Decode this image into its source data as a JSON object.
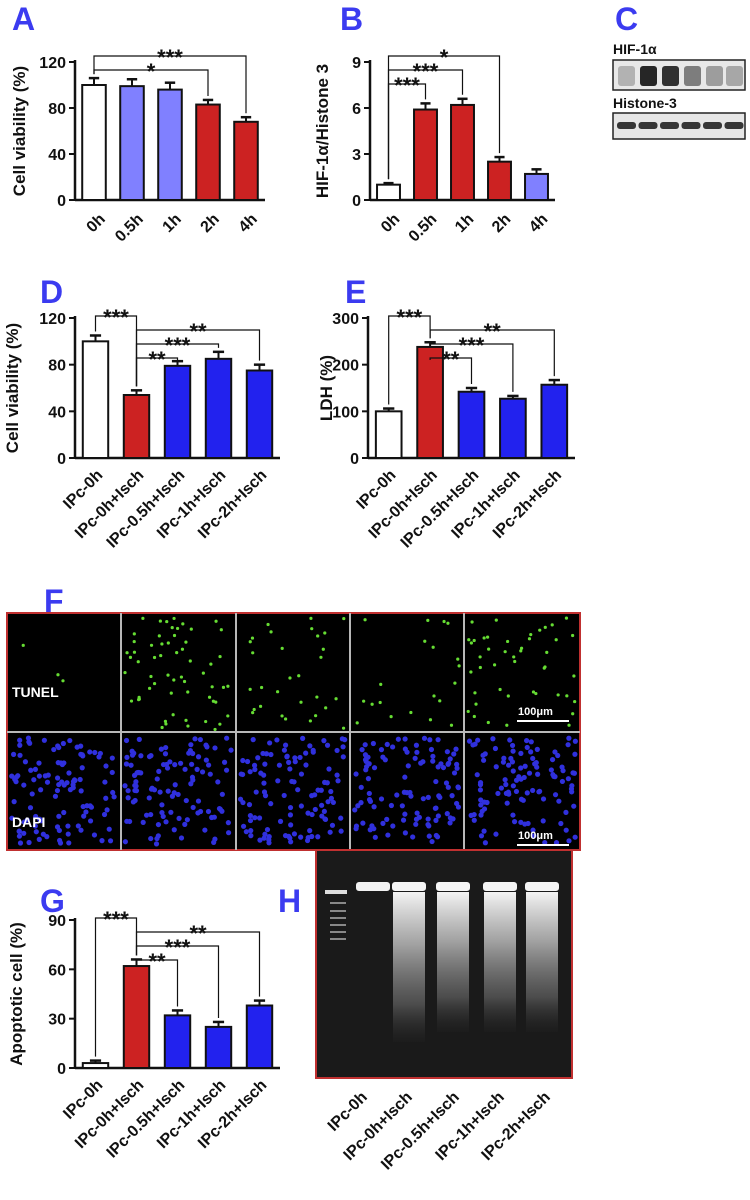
{
  "colors": {
    "letter": "#3b3bf0",
    "white_bar": "#ffffff",
    "light_blue": "#8080ff",
    "red": "#cc2222",
    "blue": "#2222ee",
    "frame_red": "#c03030",
    "tunel_green": "#66dd33",
    "dapi_blue": "#3030dd"
  },
  "chart_data": [
    {
      "panel": "A",
      "type": "bar",
      "ylabel": "Cell viability (%)",
      "categories": [
        "0h",
        "0.5h",
        "1h",
        "2h",
        "4h"
      ],
      "values": [
        100,
        99,
        96,
        83,
        68
      ],
      "errors": [
        6,
        6,
        6,
        4,
        4
      ],
      "bar_colors": [
        "white_bar",
        "light_blue",
        "light_blue",
        "red",
        "red"
      ],
      "ylim": [
        0,
        120
      ],
      "yticks": [
        "0",
        "40",
        "80",
        "120"
      ],
      "significance": [
        {
          "from": 0,
          "to": 4,
          "label": "***"
        },
        {
          "from": 0,
          "to": 3,
          "label": "*"
        }
      ]
    },
    {
      "panel": "B",
      "type": "bar",
      "ylabel": "HIF-1α/Histone 3",
      "categories": [
        "0h",
        "0.5h",
        "1h",
        "2h",
        "4h"
      ],
      "values": [
        1.0,
        5.9,
        6.2,
        2.5,
        1.7
      ],
      "errors": [
        0.1,
        0.4,
        0.4,
        0.3,
        0.3
      ],
      "bar_colors": [
        "white_bar",
        "red",
        "red",
        "red",
        "light_blue"
      ],
      "ylim": [
        0,
        9
      ],
      "yticks": [
        "0",
        "3",
        "6",
        "9"
      ],
      "significance": [
        {
          "from": 0,
          "to": 3,
          "label": "*"
        },
        {
          "from": 0,
          "to": 2,
          "label": "***"
        },
        {
          "from": 0,
          "to": 1,
          "label": "***"
        }
      ]
    },
    {
      "panel": "D",
      "type": "bar",
      "ylabel": "Cell viability (%)",
      "categories": [
        "IPc-0h",
        "IPc-0h+Isch",
        "IPc-0.5h+Isch",
        "IPc-1h+Isch",
        "IPc-2h+Isch"
      ],
      "values": [
        100,
        54,
        79,
        85,
        75
      ],
      "errors": [
        5,
        4,
        4,
        6,
        5
      ],
      "bar_colors": [
        "white_bar",
        "red",
        "blue",
        "blue",
        "blue"
      ],
      "ylim": [
        0,
        120
      ],
      "yticks": [
        "0",
        "40",
        "80",
        "120"
      ],
      "significance": [
        {
          "from": 0,
          "to": 1,
          "label": "***"
        },
        {
          "from": 1,
          "to": 4,
          "label": "**"
        },
        {
          "from": 1,
          "to": 3,
          "label": "***"
        },
        {
          "from": 1,
          "to": 2,
          "label": "**"
        }
      ]
    },
    {
      "panel": "E",
      "type": "bar",
      "ylabel": "LDH (%)",
      "categories": [
        "IPc-0h",
        "IPc-0h+Isch",
        "IPc-0.5h+Isch",
        "IPc-1h+Isch",
        "IPc-2h+Isch"
      ],
      "values": [
        100,
        238,
        142,
        127,
        157
      ],
      "errors": [
        6,
        10,
        8,
        6,
        10
      ],
      "bar_colors": [
        "white_bar",
        "red",
        "blue",
        "blue",
        "blue"
      ],
      "ylim": [
        0,
        300
      ],
      "yticks": [
        "0",
        "100",
        "200",
        "300"
      ],
      "significance": [
        {
          "from": 0,
          "to": 1,
          "label": "***"
        },
        {
          "from": 1,
          "to": 4,
          "label": "**"
        },
        {
          "from": 1,
          "to": 3,
          "label": "***"
        },
        {
          "from": 1,
          "to": 2,
          "label": "**"
        }
      ]
    },
    {
      "panel": "G",
      "type": "bar",
      "ylabel": "Apoptotic cell (%)",
      "categories": [
        "IPc-0h",
        "IPc-0h+Isch",
        "IPc-0.5h+Isch",
        "IPc-1h+Isch",
        "IPc-2h+Isch"
      ],
      "values": [
        3,
        62,
        32,
        25,
        38
      ],
      "errors": [
        1.5,
        4,
        3,
        3,
        3
      ],
      "bar_colors": [
        "white_bar",
        "red",
        "blue",
        "blue",
        "blue"
      ],
      "ylim": [
        0,
        90
      ],
      "yticks": [
        "0",
        "30",
        "60",
        "90"
      ],
      "significance": [
        {
          "from": 0,
          "to": 1,
          "label": "***"
        },
        {
          "from": 1,
          "to": 4,
          "label": "**"
        },
        {
          "from": 1,
          "to": 3,
          "label": "***"
        },
        {
          "from": 1,
          "to": 2,
          "label": "**"
        }
      ]
    }
  ],
  "western_blot": {
    "panel": "C",
    "band1_label": "HIF-1α",
    "band2_label": "Histone-3"
  },
  "microscopy": {
    "panel": "F",
    "row1_label": "TUNEL",
    "row2_label": "DAPI",
    "scale_bar": "100μm",
    "tunel_counts": [
      3,
      60,
      30,
      20,
      45
    ]
  },
  "gel": {
    "panel": "H",
    "lanes": [
      "IPc-0h",
      "IPc-0h+Isch",
      "IPc-0.5h+Isch",
      "IPc-1h+Isch",
      "IPc-2h+Isch"
    ]
  }
}
